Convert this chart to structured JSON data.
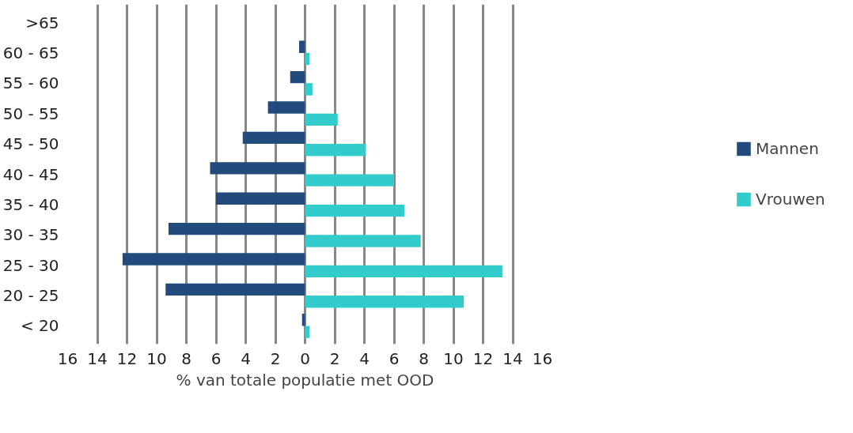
{
  "chart_data": {
    "type": "bar",
    "orientation": "horizontal",
    "xlabel": "% van totale populatie met OOD",
    "categories": [
      ">65",
      "60 - 65",
      "55 - 60",
      "50 - 55",
      "45 - 50",
      "40 - 45",
      "35 - 40",
      "30 - 35",
      "25 - 30",
      "20 - 25",
      "< 20"
    ],
    "series": [
      {
        "name": "Mannen",
        "color": "#234a7c",
        "values": [
          0,
          -0.4,
          -1.0,
          -2.5,
          -4.2,
          -6.4,
          -6.0,
          -9.2,
          -12.3,
          -9.4,
          -0.2
        ]
      },
      {
        "name": "Vrouwen",
        "color": "#33cccc",
        "values": [
          0,
          0.3,
          0.5,
          2.2,
          4.1,
          6.0,
          6.7,
          7.8,
          13.3,
          10.7,
          0.3
        ]
      }
    ],
    "xlim": [
      -16,
      16
    ],
    "xticks": [
      {
        "value": -16,
        "label": "16"
      },
      {
        "value": -14,
        "label": "14"
      },
      {
        "value": -12,
        "label": "12"
      },
      {
        "value": -10,
        "label": "10"
      },
      {
        "value": -8,
        "label": "8"
      },
      {
        "value": -6,
        "label": "6"
      },
      {
        "value": -4,
        "label": "4"
      },
      {
        "value": -2,
        "label": "2"
      },
      0,
      2,
      4,
      6,
      8,
      10,
      12,
      14,
      16
    ],
    "grid": "x",
    "legend": "right"
  }
}
